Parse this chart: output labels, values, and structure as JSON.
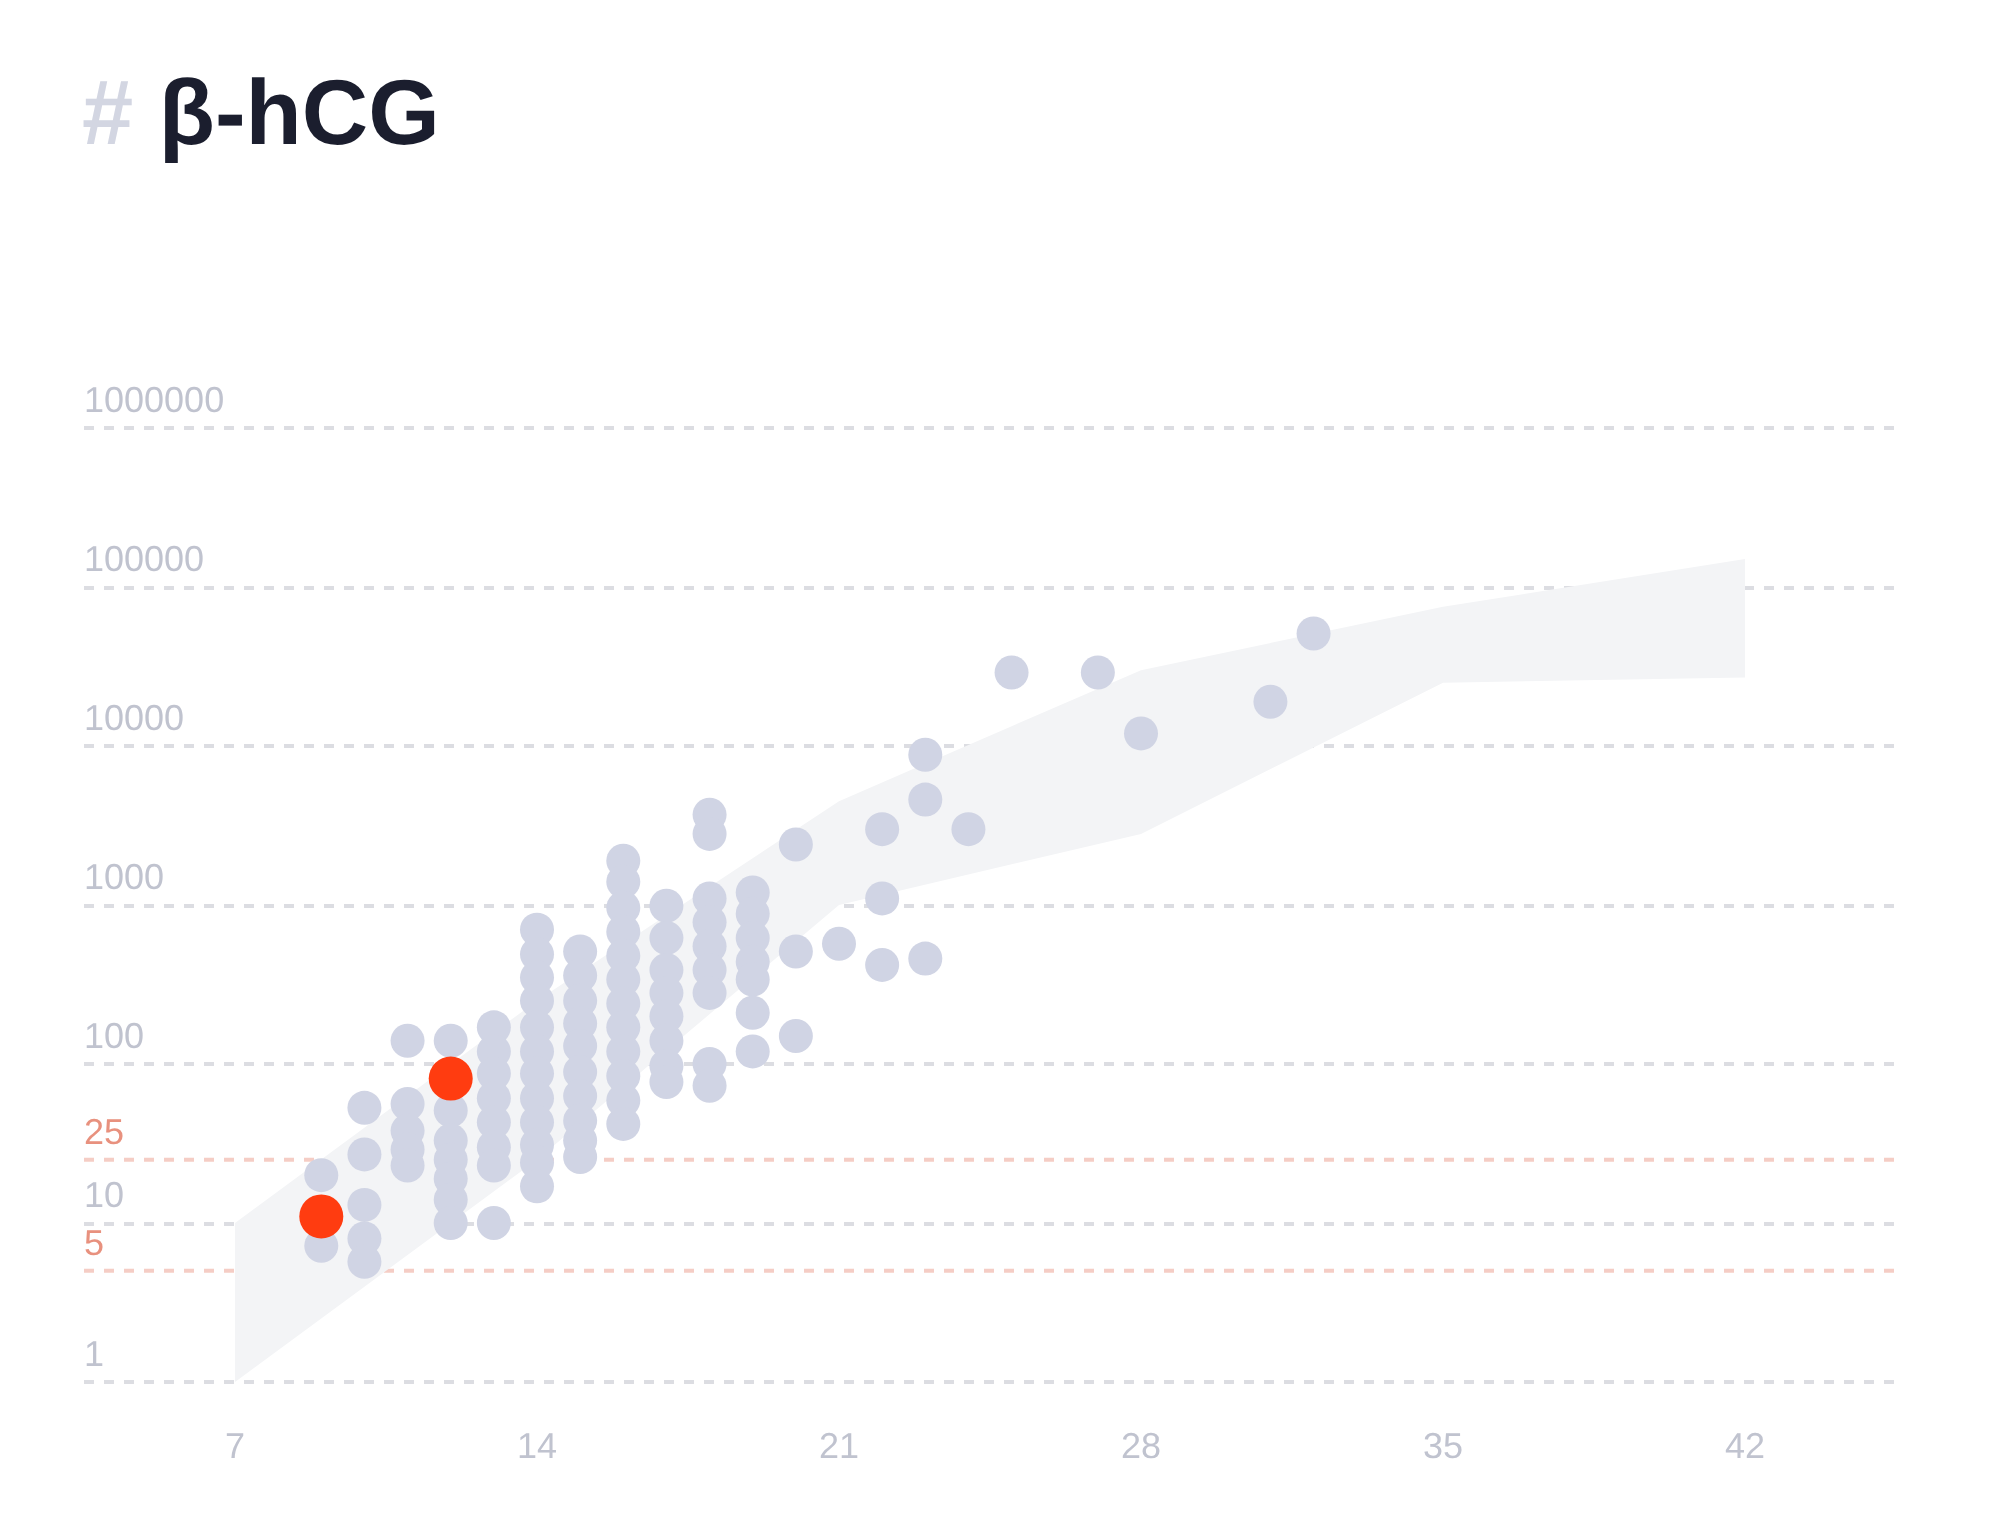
{
  "chart_data": {
    "type": "scatter",
    "title": "# β-hCG",
    "xlim": [
      3.5,
      45.5
    ],
    "xticks": [
      7,
      14,
      21,
      28,
      35,
      42
    ],
    "ylim": [
      1,
      1000000
    ],
    "yticks": [
      1,
      10,
      100,
      1000,
      10000,
      100000,
      1000000
    ],
    "log": "y",
    "grid": "y",
    "marker": "circle",
    "ref_lines": [
      {
        "axis": "y",
        "value": 25,
        "label": "25",
        "color": "#e8917e",
        "line_style": "dashed"
      },
      {
        "axis": "y",
        "value": 5,
        "label": "5",
        "color": "#e8917e",
        "line_style": "dashed"
      }
    ],
    "series": [
      {
        "type": "area",
        "color": "#f3f4f6",
        "x": [
          7,
          14,
          21,
          28,
          35,
          42
        ],
        "values": [
          null,
          null,
          null,
          null,
          null,
          null
        ],
        "lower": [
          1,
          25,
          1000,
          2800,
          25000,
          27000
        ],
        "upper": [
          10,
          250,
          4500,
          30000,
          75000,
          150000
        ]
      },
      {
        "color": "#d0d4e4",
        "x": [
          9,
          9,
          10,
          10,
          10,
          10,
          10,
          11,
          11,
          11,
          11,
          11,
          12,
          12,
          12,
          12,
          12,
          12,
          12,
          13,
          13,
          13,
          13,
          13,
          13,
          13,
          13,
          14,
          14,
          14,
          14,
          14,
          14,
          14,
          14,
          14,
          14,
          14,
          14,
          15,
          15,
          15,
          15,
          15,
          15,
          15,
          15,
          15,
          15,
          16,
          16,
          16,
          16,
          16,
          16,
          16,
          16,
          16,
          16,
          16,
          16,
          17,
          17,
          17,
          17,
          17,
          17,
          17,
          17,
          18,
          18,
          18,
          18,
          18,
          18,
          18,
          18,
          18,
          19,
          19,
          19,
          19,
          19,
          19,
          19,
          20,
          20,
          20,
          21,
          22,
          22,
          22,
          23,
          23,
          23,
          24,
          25,
          27,
          28,
          31,
          32
        ],
        "values": [
          20,
          7.2,
          53,
          27,
          13,
          8,
          5.7,
          140,
          56,
          38,
          29,
          23,
          140,
          51,
          33,
          25,
          19,
          14,
          10,
          170,
          120,
          87,
          61,
          43,
          30,
          23,
          10,
          700,
          490,
          350,
          250,
          170,
          120,
          87,
          61,
          43,
          31,
          24,
          17,
          510,
          360,
          250,
          180,
          130,
          89,
          63,
          44,
          33,
          26,
          1900,
          1400,
          960,
          680,
          480,
          340,
          240,
          170,
          120,
          84,
          59,
          42,
          990,
          620,
          390,
          280,
          200,
          140,
          97,
          77,
          3700,
          2800,
          1100,
          780,
          550,
          390,
          280,
          100,
          73,
          1200,
          880,
          620,
          440,
          340,
          210,
          120,
          2400,
          510,
          150,
          570,
          3000,
          1100,
          420,
          8800,
          4600,
          460,
          3000,
          29000,
          29000,
          12000,
          19000,
          51000
        ]
      },
      {
        "color": "#ff3c10",
        "x": [
          9,
          12
        ],
        "values": [
          11,
          81
        ]
      }
    ]
  }
}
